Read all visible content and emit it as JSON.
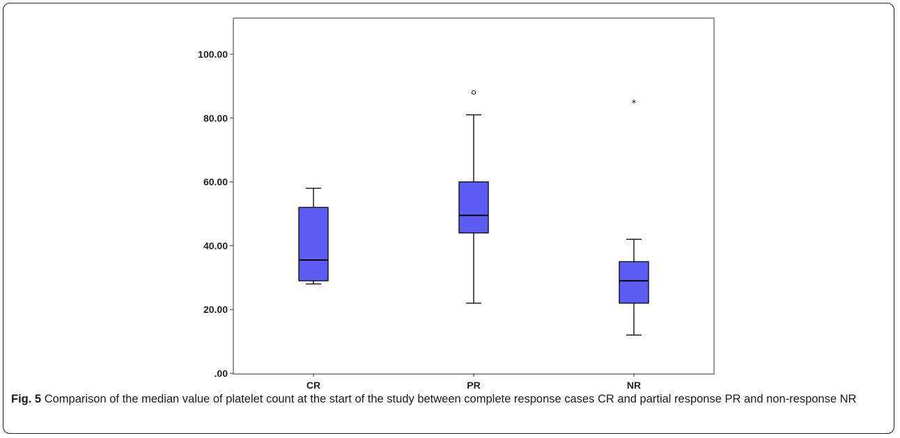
{
  "caption": {
    "label": "Fig. 5",
    "text": "Comparison of the median value of platelet count at the start of the study between complete response cases CR and partial response PR and non-response NR"
  },
  "chart_data": {
    "type": "box",
    "title": "",
    "xlabel": "",
    "ylabel": "",
    "ylim": [
      0,
      110
    ],
    "yticks": [
      0,
      20,
      40,
      60,
      80,
      100
    ],
    "ytick_labels": [
      ".00",
      "20.00",
      "40.00",
      "60.00",
      "80.00",
      "100.00"
    ],
    "grid": false,
    "categories": [
      "CR",
      "PR",
      "NR"
    ],
    "box_color": "#5c5cf5",
    "boxes": [
      {
        "name": "CR",
        "whisker_low": 28,
        "q1": 29,
        "median": 35.5,
        "q3": 52,
        "whisker_high": 58,
        "outliers": [],
        "extremes": []
      },
      {
        "name": "PR",
        "whisker_low": 22,
        "q1": 44,
        "median": 49.5,
        "q3": 60,
        "whisker_high": 81,
        "outliers": [
          88
        ],
        "extremes": []
      },
      {
        "name": "NR",
        "whisker_low": 12,
        "q1": 22,
        "median": 29,
        "q3": 35,
        "whisker_high": 42,
        "outliers": [],
        "extremes": [
          85
        ]
      }
    ]
  }
}
